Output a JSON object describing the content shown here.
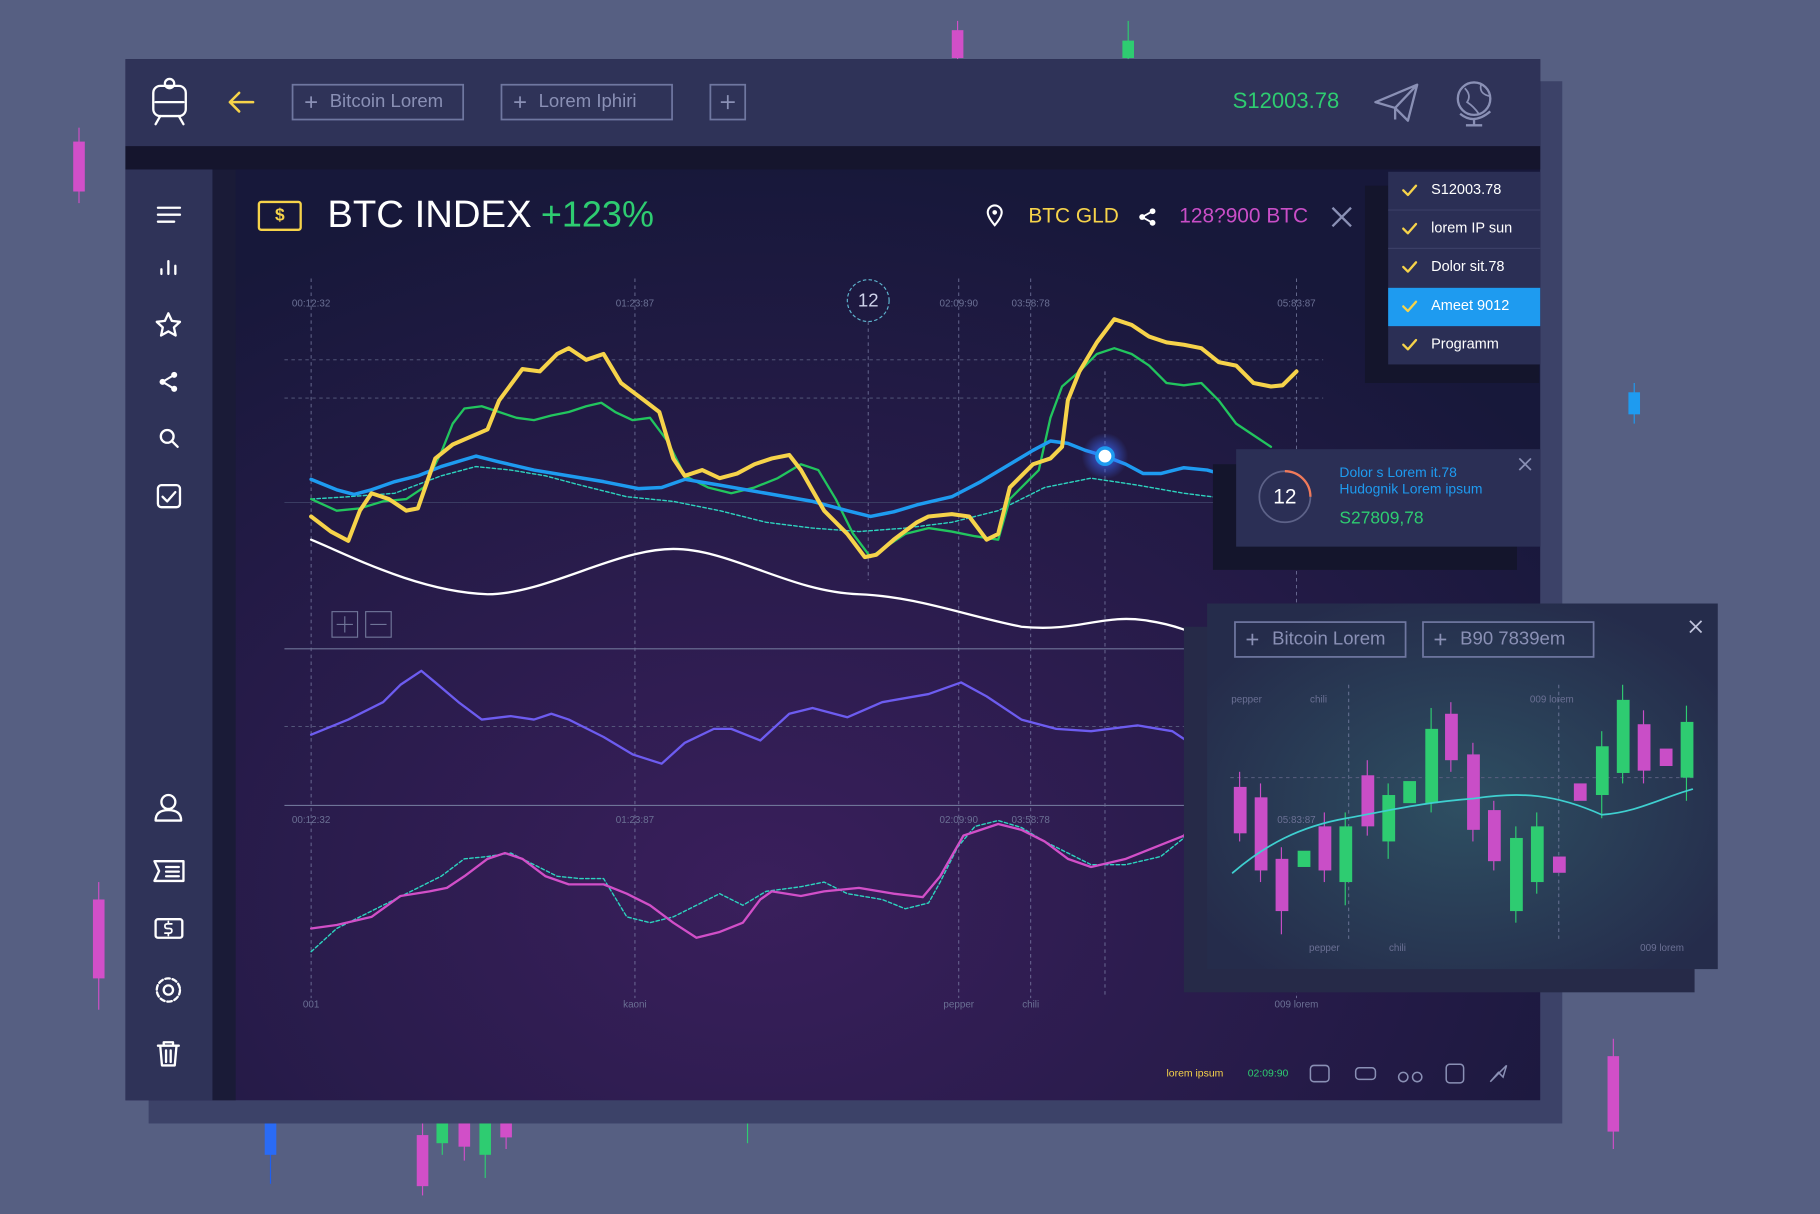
{
  "nav": {
    "tabs": [
      "Bitcoin Lorem",
      "Lorem Iphiri"
    ],
    "balance": "S12003.78"
  },
  "header": {
    "title": "BTC INDEX",
    "change": "+123%",
    "asset": "BTC GLD",
    "amount": "128?900 BTC"
  },
  "menu": {
    "items": [
      "S12003.78",
      "lorem IP sun",
      "Dolor sit.78",
      "Ameet 9012",
      "Programm"
    ]
  },
  "chart": {
    "time_labels": [
      "00:12:32",
      "01:23:87",
      "02:09:90",
      "03:58:78",
      "05:83:87"
    ],
    "marker": "12",
    "lower_time_labels": [
      "00:12:32",
      "01:23:87",
      "02:09:90",
      "03:58:78"
    ],
    "x_labels": [
      "001",
      "kaoni",
      "pepper",
      "chili",
      "009 lorem"
    ]
  },
  "tooltip": {
    "badge": "12",
    "line1": "Dolor s Lorem it.78",
    "line2": "Hudognik Lorem ipsum",
    "value": "S27809,78"
  },
  "popup": {
    "tabs": [
      "Bitcoin Lorem",
      "B90 7839em"
    ],
    "top_labels": [
      "pepper",
      "chili",
      "009 lorem"
    ],
    "mid_label": "05:83:87",
    "bottom_labels": [
      "pepper",
      "chili",
      "009 lorem"
    ]
  },
  "footer": {
    "label": "lorem ipsum",
    "time": "02:09:90"
  }
}
